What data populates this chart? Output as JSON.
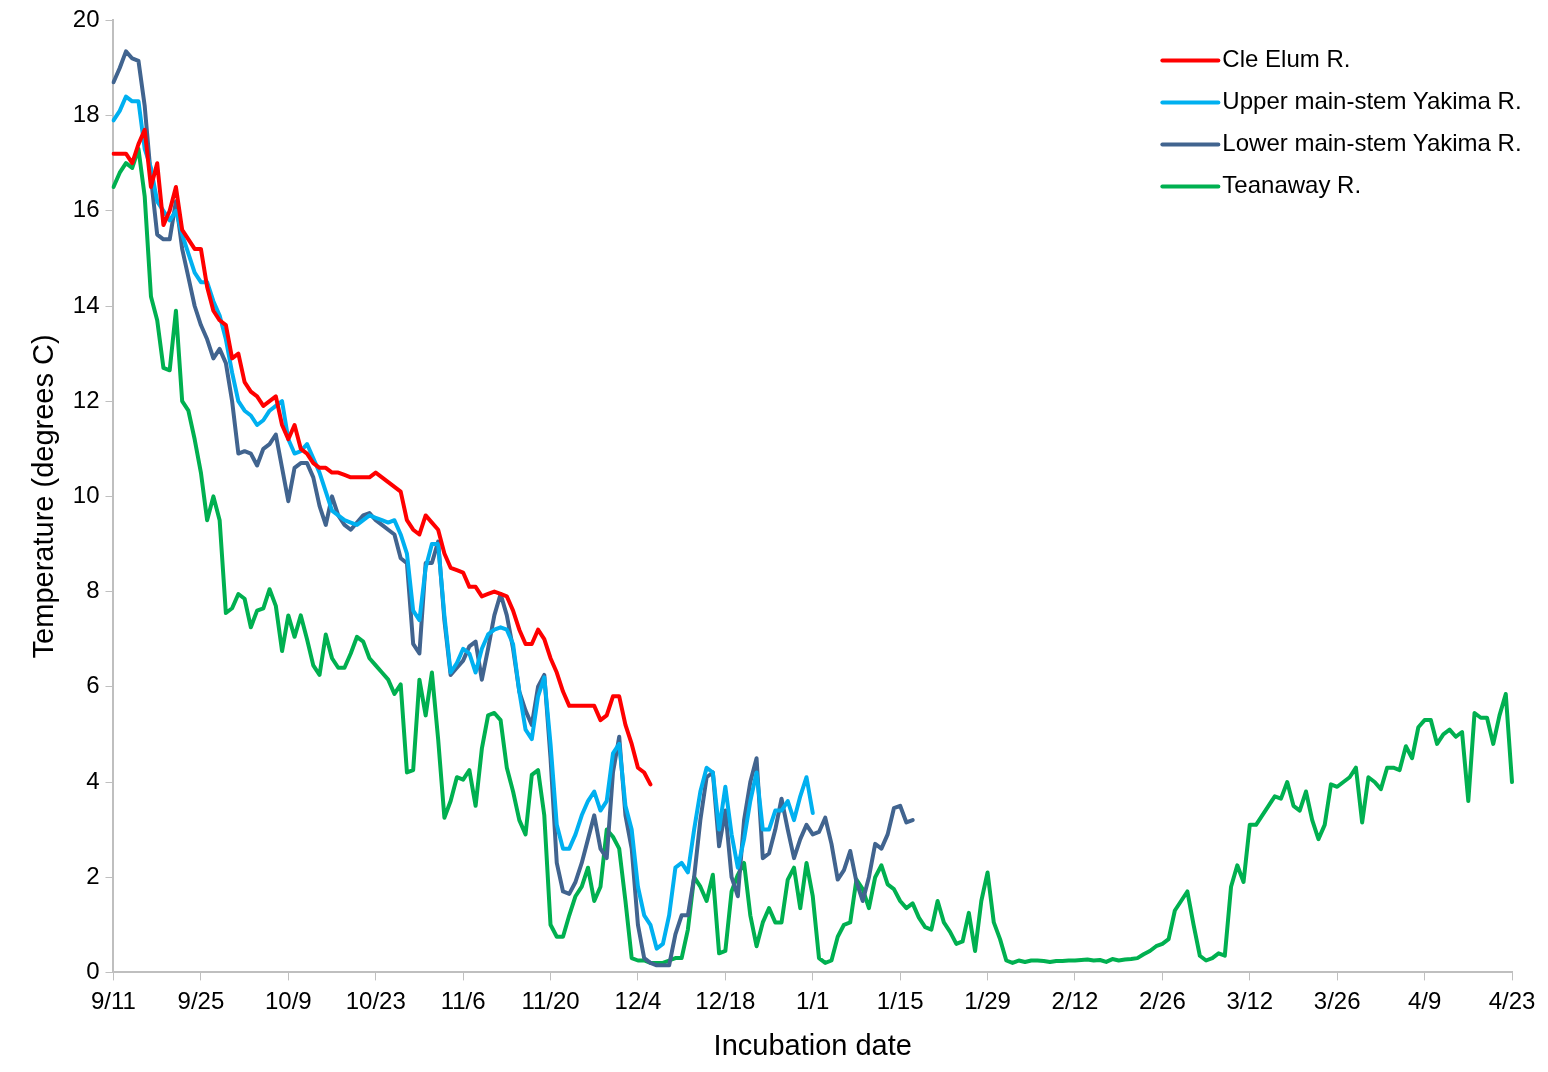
{
  "chart_data": {
    "type": "line",
    "xlabel": "Incubation date",
    "ylabel": "Temperature (degrees C)",
    "categories": [
      "9/11",
      null,
      null,
      null,
      null,
      null,
      null,
      null,
      null,
      null,
      null,
      null,
      null,
      null,
      "9/25",
      null,
      null,
      null,
      null,
      null,
      null,
      null,
      null,
      null,
      null,
      null,
      null,
      null,
      "10/9",
      null,
      null,
      null,
      null,
      null,
      null,
      null,
      null,
      null,
      null,
      null,
      null,
      null,
      "10/23",
      null,
      null,
      null,
      null,
      null,
      null,
      null,
      null,
      null,
      null,
      null,
      null,
      null,
      "11/6",
      null,
      null,
      null,
      null,
      null,
      null,
      null,
      null,
      null,
      null,
      null,
      null,
      null,
      "11/20",
      null,
      null,
      null,
      null,
      null,
      null,
      null,
      null,
      null,
      null,
      null,
      null,
      null,
      "12/4",
      null,
      null,
      null,
      null,
      null,
      null,
      null,
      null,
      null,
      null,
      null,
      null,
      null,
      "12/18",
      null,
      null,
      null,
      null,
      null,
      null,
      null,
      null,
      null,
      null,
      null,
      null,
      null,
      "1/1",
      null,
      null,
      null,
      null,
      null,
      null,
      null,
      null,
      null,
      null,
      null,
      null,
      null,
      "1/15",
      null,
      null,
      null,
      null,
      null,
      null,
      null,
      null,
      null,
      null,
      null,
      null,
      null,
      "1/29",
      null,
      null,
      null,
      null,
      null,
      null,
      null,
      null,
      null,
      null,
      null,
      null,
      null,
      "2/12",
      null,
      null,
      null,
      null,
      null,
      null,
      null,
      null,
      null,
      null,
      null,
      null,
      null,
      "2/26",
      null,
      null,
      null,
      null,
      null,
      null,
      null,
      null,
      null,
      null,
      null,
      null,
      null,
      "3/12",
      null,
      null,
      null,
      null,
      null,
      null,
      null,
      null,
      null,
      null,
      null,
      null,
      null,
      "3/26",
      null,
      null,
      null,
      null,
      null,
      null,
      null,
      null,
      null,
      null,
      null,
      null,
      null,
      "4/9",
      null,
      null,
      null,
      null,
      null,
      null,
      null,
      null,
      null,
      null,
      null,
      null,
      null,
      "4/23"
    ],
    "series": [
      {
        "name": "Cle Elum R.",
        "color": "#ff0000",
        "values": [
          17.2,
          17.2,
          17.2,
          17.0,
          17.4,
          17.7,
          16.5,
          17.0,
          15.7,
          16.0,
          16.5,
          15.6,
          15.4,
          15.2,
          15.2,
          14.4,
          13.9,
          13.7,
          13.6,
          12.9,
          13.0,
          12.4,
          12.2,
          12.1,
          11.9,
          12.0,
          12.1,
          11.5,
          11.2,
          11.5,
          11.0,
          10.9,
          10.7,
          10.6,
          10.6,
          10.5,
          10.5,
          10.45,
          10.4,
          10.4,
          10.4,
          10.4,
          10.5,
          10.4,
          10.3,
          10.2,
          10.1,
          9.5,
          9.3,
          9.2,
          9.6,
          9.45,
          9.3,
          8.8,
          8.5,
          8.45,
          8.4,
          8.1,
          8.1,
          7.9,
          7.95,
          8.0,
          7.95,
          7.9,
          7.6,
          7.2,
          6.9,
          6.9,
          7.2,
          7.0,
          6.6,
          6.3,
          5.9,
          5.6,
          5.6,
          5.6,
          5.6,
          5.6,
          5.3,
          5.4,
          5.8,
          5.8,
          5.2,
          4.8,
          4.3,
          4.2,
          3.95,
          null,
          null,
          null,
          null,
          null,
          null,
          null,
          null,
          null,
          null,
          null,
          null,
          null,
          null,
          null,
          null,
          null,
          null,
          null,
          null,
          null,
          null,
          null,
          null,
          null,
          null,
          null,
          null,
          null,
          null,
          null,
          null,
          null,
          null,
          null,
          null,
          null,
          null,
          null,
          null,
          null,
          null,
          null,
          null,
          null,
          null,
          null,
          null,
          null,
          null,
          null,
          null,
          null,
          null,
          null,
          null,
          null,
          null,
          null,
          null,
          null,
          null,
          null,
          null,
          null,
          null,
          null,
          null,
          null,
          null,
          null,
          null,
          null,
          null,
          null,
          null,
          null,
          null,
          null,
          null,
          null,
          null,
          null,
          null,
          null,
          null,
          null,
          null,
          null,
          null,
          null,
          null,
          null,
          null,
          null,
          null,
          null,
          null,
          null,
          null,
          null,
          null,
          null,
          null,
          null,
          null,
          null,
          null,
          null,
          null,
          null,
          null,
          null,
          null,
          null,
          null,
          null,
          null,
          null,
          null,
          null,
          null,
          null,
          null,
          null,
          null,
          null,
          null,
          null,
          null,
          null,
          null,
          null,
          null,
          null,
          null,
          null,
          null
        ]
      },
      {
        "name": "Upper main-stem Yakima R.",
        "color": "#00b0f0",
        "values": [
          17.9,
          18.1,
          18.4,
          18.3,
          18.3,
          17.3,
          16.9,
          16.2,
          16.0,
          15.8,
          16.0,
          15.5,
          15.1,
          14.7,
          14.5,
          14.5,
          14.1,
          13.8,
          13.3,
          12.6,
          12.0,
          11.8,
          11.7,
          11.5,
          11.6,
          11.8,
          11.9,
          12.0,
          11.2,
          10.9,
          10.95,
          11.1,
          10.8,
          10.5,
          10.1,
          9.7,
          9.6,
          9.5,
          9.45,
          9.4,
          9.5,
          9.6,
          9.55,
          9.5,
          9.45,
          9.5,
          9.2,
          8.8,
          7.6,
          7.4,
          8.5,
          9.0,
          9.0,
          7.5,
          6.3,
          6.5,
          6.8,
          6.7,
          6.3,
          6.8,
          7.1,
          7.2,
          7.25,
          7.2,
          6.9,
          5.9,
          5.1,
          4.9,
          5.8,
          6.2,
          4.8,
          3.1,
          2.6,
          2.6,
          2.9,
          3.3,
          3.6,
          3.8,
          3.4,
          3.6,
          4.6,
          4.8,
          3.5,
          3.0,
          1.8,
          1.2,
          1.0,
          0.5,
          0.6,
          1.2,
          2.2,
          2.3,
          2.1,
          3.0,
          3.8,
          4.3,
          4.2,
          3.0,
          3.9,
          2.9,
          2.2,
          2.8,
          3.6,
          4.2,
          3.0,
          3.0,
          3.4,
          3.4,
          3.6,
          3.2,
          3.7,
          4.1,
          3.35,
          null,
          null,
          null,
          null,
          null,
          null,
          null,
          null,
          null,
          null,
          null,
          null,
          null,
          null,
          null,
          null,
          null,
          null,
          null,
          null,
          null,
          null,
          null,
          null,
          null,
          null,
          null,
          null,
          null,
          null,
          null,
          null,
          null,
          null,
          null,
          null,
          null,
          null,
          null,
          null,
          null,
          null,
          null,
          null,
          null,
          null,
          null,
          null,
          null,
          null,
          null,
          null,
          null,
          null,
          null,
          null,
          null,
          null,
          null,
          null,
          null,
          null,
          null,
          null,
          null,
          null,
          null,
          null,
          null,
          null,
          null,
          null,
          null,
          null,
          null,
          null,
          null,
          null,
          null,
          null,
          null,
          null,
          null,
          null,
          null,
          null,
          null,
          null,
          null,
          null,
          null,
          null,
          null,
          null,
          null,
          null,
          null,
          null,
          null,
          null,
          null,
          null,
          null,
          null,
          null,
          null,
          null,
          null,
          null,
          null,
          null,
          null
        ]
      },
      {
        "name": "Lower main-stem Yakima R.",
        "color": "#41648f",
        "values": [
          18.7,
          19.0,
          19.35,
          19.2,
          19.15,
          18.2,
          16.7,
          15.5,
          15.4,
          15.4,
          16.2,
          15.2,
          14.6,
          14.0,
          13.6,
          13.3,
          12.9,
          13.1,
          12.8,
          12.0,
          10.9,
          10.95,
          10.9,
          10.65,
          11.0,
          11.1,
          11.3,
          10.6,
          9.9,
          10.6,
          10.7,
          10.7,
          10.4,
          9.8,
          9.4,
          10.0,
          9.6,
          9.4,
          9.3,
          9.45,
          9.6,
          9.65,
          9.5,
          9.4,
          9.3,
          9.2,
          8.7,
          8.6,
          6.9,
          6.7,
          8.6,
          8.6,
          9.05,
          7.4,
          6.25,
          6.4,
          6.55,
          6.85,
          6.95,
          6.15,
          6.8,
          7.5,
          7.95,
          7.5,
          6.8,
          5.9,
          5.5,
          5.2,
          6.0,
          6.25,
          4.5,
          2.3,
          1.7,
          1.65,
          1.9,
          2.3,
          2.8,
          3.3,
          2.6,
          2.4,
          4.2,
          4.95,
          3.3,
          2.6,
          1.0,
          0.3,
          0.2,
          0.15,
          0.15,
          0.15,
          0.8,
          1.2,
          1.2,
          2.0,
          3.2,
          4.1,
          4.2,
          2.65,
          3.4,
          2.0,
          1.6,
          3.2,
          4.0,
          4.5,
          2.4,
          2.5,
          3.0,
          3.65,
          3.0,
          2.4,
          2.8,
          3.1,
          2.9,
          2.95,
          3.25,
          2.7,
          1.95,
          2.15,
          2.55,
          1.9,
          1.5,
          2.0,
          2.7,
          2.6,
          2.9,
          3.45,
          3.5,
          3.15,
          3.2,
          null,
          null,
          null,
          null,
          null,
          null,
          null,
          null,
          null,
          null,
          null,
          null,
          null,
          null,
          null,
          null,
          null,
          null,
          null,
          null,
          null,
          null,
          null,
          null,
          null,
          null,
          null,
          null,
          null,
          null,
          null,
          null,
          null,
          null,
          null,
          null,
          null,
          null,
          null,
          null,
          null,
          null,
          null,
          null,
          null,
          null,
          null,
          null,
          null,
          null,
          null,
          null,
          null,
          null,
          null,
          null,
          null,
          null,
          null,
          null,
          null,
          null,
          null,
          null,
          null,
          null,
          null,
          null,
          null,
          null,
          null,
          null,
          null,
          null,
          null,
          null,
          null,
          null,
          null,
          null,
          null,
          null,
          null,
          null,
          null,
          null,
          null,
          null,
          null,
          null,
          null,
          null,
          null,
          null,
          null,
          null
        ]
      },
      {
        "name": "Teanaway R.",
        "color": "#00b050",
        "values": [
          16.5,
          16.8,
          17.0,
          16.9,
          17.3,
          16.3,
          14.2,
          13.7,
          12.7,
          12.65,
          13.9,
          12.0,
          11.8,
          11.2,
          10.5,
          9.5,
          10.0,
          9.5,
          7.55,
          7.65,
          7.95,
          7.85,
          7.25,
          7.6,
          7.65,
          8.05,
          7.7,
          6.75,
          7.5,
          7.05,
          7.5,
          7.0,
          6.45,
          6.25,
          7.1,
          6.6,
          6.4,
          6.4,
          6.7,
          7.05,
          6.95,
          6.6,
          6.45,
          6.3,
          6.15,
          5.85,
          6.05,
          4.2,
          4.25,
          6.15,
          5.4,
          6.3,
          4.9,
          3.25,
          3.6,
          4.1,
          4.05,
          4.25,
          3.5,
          4.7,
          5.4,
          5.45,
          5.3,
          4.3,
          3.8,
          3.2,
          2.9,
          4.15,
          4.25,
          3.3,
          1.0,
          0.75,
          0.75,
          1.2,
          1.6,
          1.8,
          2.2,
          1.5,
          1.8,
          3.0,
          2.85,
          2.6,
          1.5,
          0.3,
          0.25,
          0.25,
          0.2,
          0.2,
          0.2,
          0.25,
          0.3,
          0.3,
          0.9,
          2.0,
          1.8,
          1.5,
          2.05,
          0.4,
          0.45,
          1.7,
          2.05,
          2.3,
          1.2,
          0.55,
          1.05,
          1.35,
          1.05,
          1.05,
          1.95,
          2.2,
          1.35,
          2.3,
          1.6,
          0.3,
          0.2,
          0.25,
          0.75,
          1.0,
          1.05,
          1.95,
          1.75,
          1.35,
          2.0,
          2.25,
          1.85,
          1.75,
          1.5,
          1.35,
          1.45,
          1.15,
          0.95,
          0.9,
          1.5,
          1.05,
          0.85,
          0.6,
          0.65,
          1.25,
          0.45,
          1.5,
          2.1,
          1.05,
          0.7,
          0.25,
          0.2,
          0.25,
          0.22,
          0.25,
          0.25,
          0.24,
          0.22,
          0.24,
          0.24,
          0.25,
          0.25,
          0.26,
          0.27,
          0.25,
          0.26,
          0.22,
          0.28,
          0.25,
          0.27,
          0.28,
          0.3,
          0.38,
          0.45,
          0.55,
          0.6,
          0.7,
          1.3,
          1.5,
          1.7,
          1.0,
          0.35,
          0.25,
          0.3,
          0.4,
          0.35,
          1.8,
          2.25,
          1.9,
          3.1,
          3.1,
          3.3,
          3.5,
          3.7,
          3.65,
          4.0,
          3.5,
          3.4,
          3.8,
          3.2,
          2.8,
          3.1,
          3.95,
          3.9,
          4.0,
          4.1,
          4.3,
          3.15,
          4.1,
          4.0,
          3.85,
          4.3,
          4.3,
          4.25,
          4.75,
          4.5,
          5.15,
          5.3,
          5.3,
          4.8,
          5.0,
          5.1,
          4.95,
          5.05,
          3.6,
          5.45,
          5.35,
          5.35,
          4.8,
          5.4,
          5.85,
          4.0
        ]
      }
    ],
    "ylim": [
      0,
      20
    ],
    "yticks": [
      0,
      2,
      4,
      6,
      8,
      10,
      12,
      14,
      16,
      18,
      20
    ],
    "grid": false,
    "legend": "top right",
    "marker": "none",
    "line_style": "solid"
  }
}
